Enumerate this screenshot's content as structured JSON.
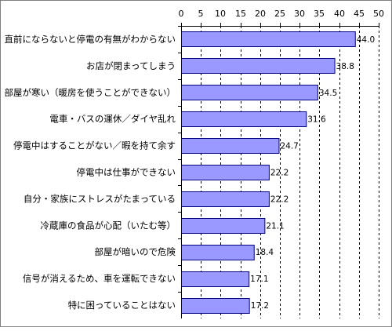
{
  "chart_data": {
    "type": "bar",
    "orientation": "horizontal",
    "title": "",
    "xlabel": "",
    "ylabel": "",
    "xlim": [
      0,
      50
    ],
    "ticks": [
      0,
      5,
      10,
      15,
      20,
      25,
      30,
      35,
      40,
      45,
      50
    ],
    "tick_labels": [
      "0",
      "5",
      "10",
      "15",
      "20",
      "25",
      "30",
      "35",
      "40",
      "45",
      "50"
    ],
    "x_axis_position": "top",
    "grid": "vertical dashed",
    "categories": [
      "直前にならないと停電の有無がわからない",
      "お店が閉まってしまう",
      "部屋が寒い（暖房を使うことができない）",
      "電車・バスの運休／ダイヤ乱れ",
      "停電中はすることがない／暇を持て余す",
      "停電中は仕事ができない",
      "自分・家族にストレスがたまっている",
      "冷蔵庫の食品が心配（いたむ等）",
      "部屋が暗いので危険",
      "信号が消えるため、車を運転できない",
      "特に困っていることはない"
    ],
    "values": [
      44.0,
      38.8,
      34.5,
      31.6,
      24.7,
      22.2,
      22.2,
      21.1,
      18.4,
      17.1,
      17.2
    ],
    "value_labels": [
      "44.0",
      "38.8",
      "34.5",
      "31.6",
      "24.7",
      "22.2",
      "22.2",
      "21.1",
      "18.4",
      "17.1",
      "17.2"
    ],
    "colors": {
      "bar_fill": "#9999ff",
      "bar_stroke": "#000080",
      "axis": "#000000",
      "grid": "#000000",
      "plot_bg": "#ffffff"
    }
  }
}
